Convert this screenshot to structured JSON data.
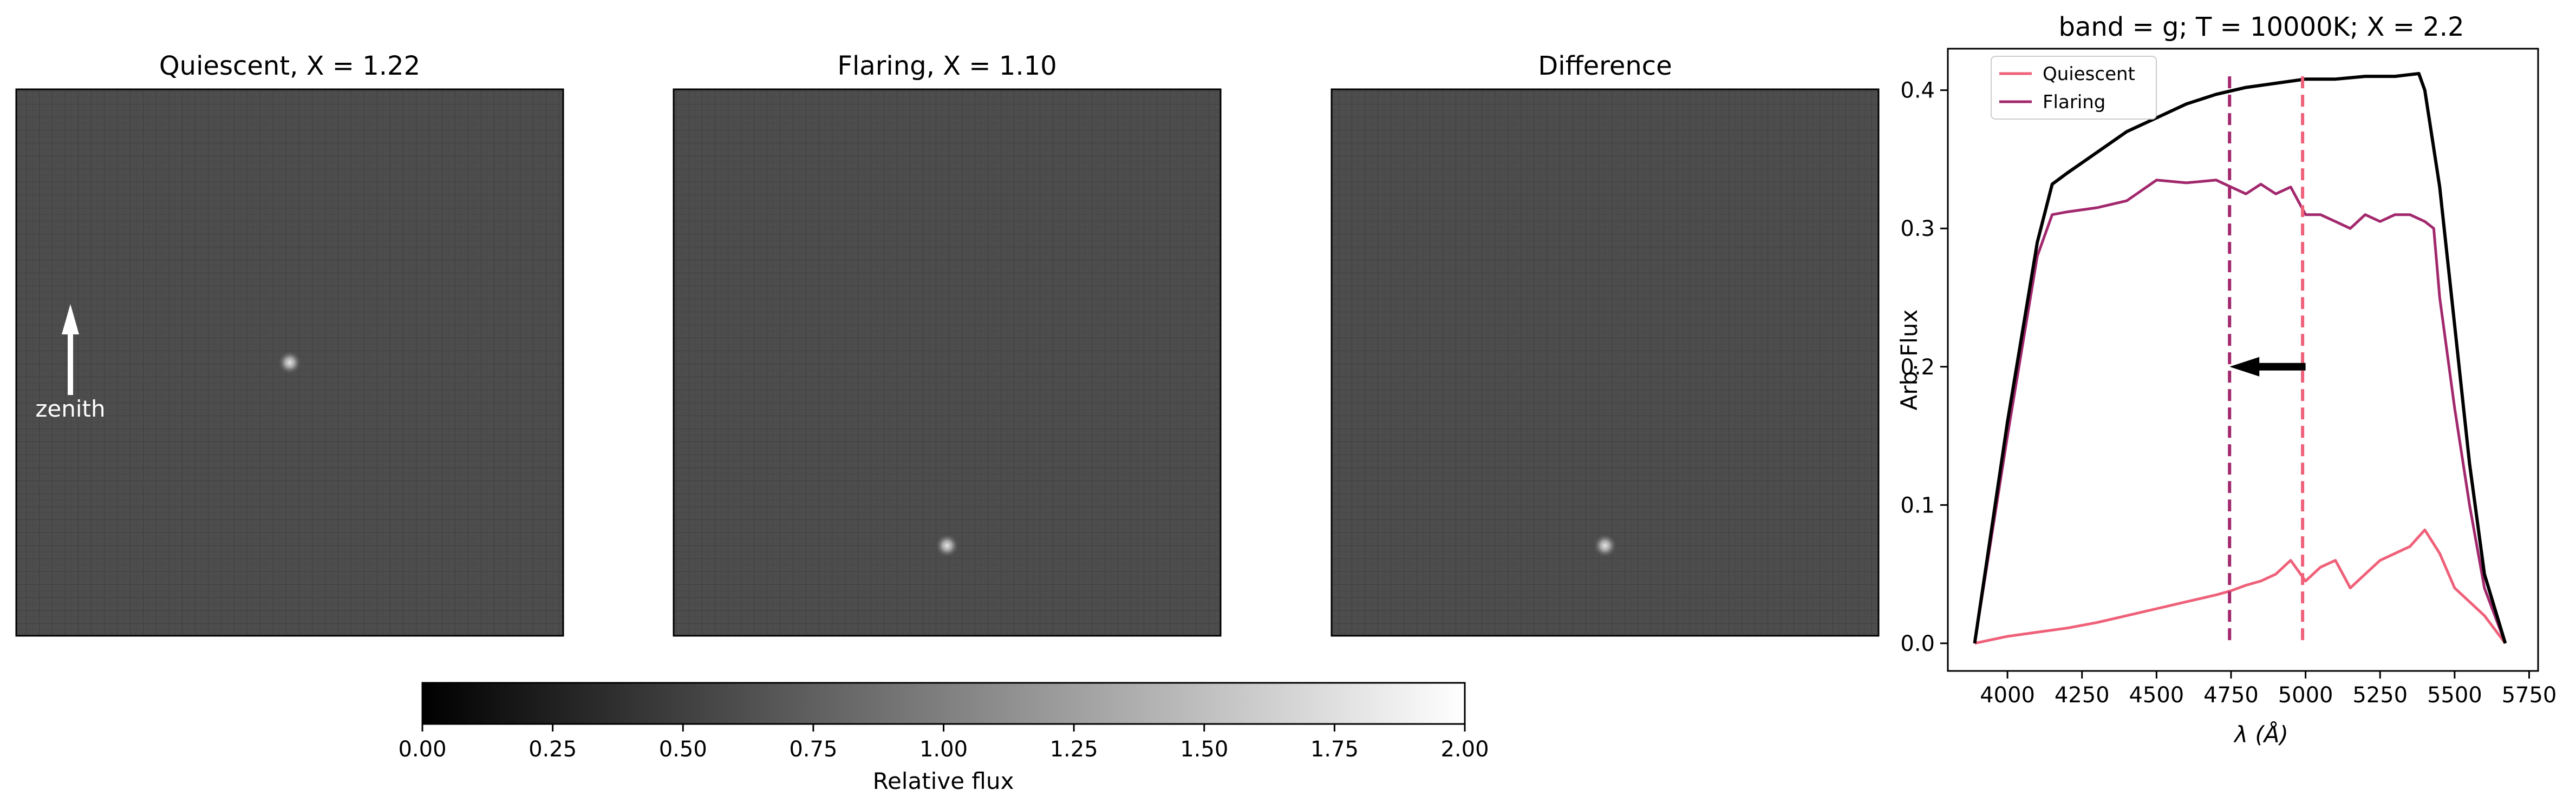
{
  "chart_data": [
    {
      "type": "heatmap",
      "title": "Quiescent, X = 1.22",
      "background_value": 0.3,
      "source": {
        "x": 0.5,
        "y": 0.5,
        "peak": 1.0
      },
      "annotation": "zenith"
    },
    {
      "type": "heatmap",
      "title": "Flaring, X = 1.10",
      "background_value": 0.3,
      "source": {
        "x": 0.5,
        "y": 0.835,
        "peak": 1.15
      }
    },
    {
      "type": "heatmap",
      "title": "Difference",
      "background_value": 0.3,
      "source": {
        "x": 0.5,
        "y": 0.835,
        "peak": 1.15
      }
    },
    {
      "type": "line",
      "title": "band = g; T = 10000K; X = 2.2",
      "xlabel": "λ (Å)",
      "ylabel": "Arb. Flux",
      "xlim": [
        3800,
        5780
      ],
      "ylim": [
        -0.02,
        0.43
      ],
      "xticks": [
        "4000",
        "4250",
        "4500",
        "4750",
        "5000",
        "5250",
        "5500",
        "5750"
      ],
      "yticks": [
        "0.0",
        "0.1",
        "0.2",
        "0.3",
        "0.4"
      ],
      "legend": {
        "position": "upper-left"
      },
      "series": [
        {
          "name": "Quiescent",
          "color": "#ef6079",
          "x": [
            3890,
            4000,
            4100,
            4200,
            4300,
            4400,
            4500,
            4600,
            4700,
            4750,
            4800,
            4850,
            4900,
            4950,
            5000,
            5050,
            5100,
            5150,
            5200,
            5250,
            5300,
            5350,
            5400,
            5450,
            5500,
            5550,
            5600,
            5670
          ],
          "y": [
            0.0,
            0.005,
            0.008,
            0.011,
            0.015,
            0.02,
            0.025,
            0.03,
            0.035,
            0.038,
            0.042,
            0.045,
            0.05,
            0.06,
            0.045,
            0.055,
            0.06,
            0.04,
            0.05,
            0.06,
            0.065,
            0.07,
            0.082,
            0.065,
            0.04,
            0.03,
            0.02,
            0.0
          ]
        },
        {
          "name": "Flaring",
          "color": "#a2286d",
          "x": [
            3890,
            4000,
            4100,
            4150,
            4200,
            4300,
            4400,
            4500,
            4600,
            4700,
            4750,
            4800,
            4850,
            4900,
            4950,
            5000,
            5050,
            5100,
            5150,
            5200,
            5250,
            5300,
            5350,
            5400,
            5430,
            5450,
            5500,
            5550,
            5600,
            5670
          ],
          "y": [
            0.0,
            0.15,
            0.28,
            0.31,
            0.312,
            0.315,
            0.32,
            0.335,
            0.333,
            0.335,
            0.33,
            0.325,
            0.332,
            0.325,
            0.33,
            0.31,
            0.31,
            0.305,
            0.3,
            0.31,
            0.305,
            0.31,
            0.31,
            0.305,
            0.3,
            0.25,
            0.17,
            0.1,
            0.04,
            0.0
          ]
        },
        {
          "name": "",
          "color": "#000000",
          "x": [
            3890,
            4000,
            4100,
            4150,
            4200,
            4300,
            4400,
            4500,
            4600,
            4700,
            4800,
            4900,
            5000,
            5100,
            5200,
            5300,
            5380,
            5400,
            5450,
            5500,
            5550,
            5600,
            5670
          ],
          "y": [
            0.0,
            0.16,
            0.29,
            0.332,
            0.34,
            0.355,
            0.37,
            0.38,
            0.39,
            0.397,
            0.402,
            0.405,
            0.408,
            0.408,
            0.41,
            0.41,
            0.412,
            0.4,
            0.33,
            0.23,
            0.13,
            0.05,
            0.0
          ]
        }
      ],
      "vlines": [
        {
          "x": 4745,
          "color": "#a2286d"
        },
        {
          "x": 4990,
          "color": "#ef6079"
        }
      ],
      "arrow": {
        "from": [
          5000,
          0.2
        ],
        "to": [
          4745,
          0.2
        ]
      }
    }
  ],
  "colorbar": {
    "label": "Relative flux",
    "range": [
      0,
      2
    ],
    "ticks": [
      "0.00",
      "0.25",
      "0.50",
      "0.75",
      "1.00",
      "1.25",
      "1.50",
      "1.75",
      "2.00"
    ]
  }
}
